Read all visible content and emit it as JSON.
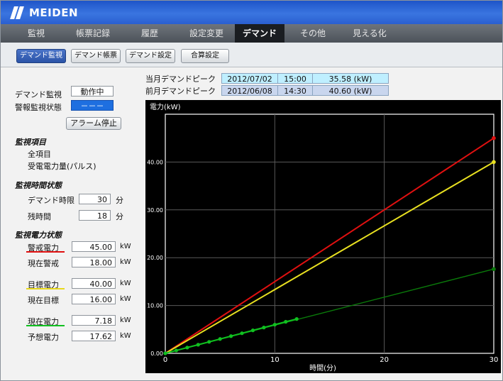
{
  "brand": "MEIDEN",
  "nav_tabs": [
    "監視",
    "帳票記録",
    "履歴",
    "設定変更",
    "デマンド",
    "その他",
    "見える化"
  ],
  "sub_buttons": [
    "デマンド監視",
    "デマンド帳票",
    "デマンド設定",
    "合算設定"
  ],
  "peak": {
    "this_month": {
      "label": "当月デマンドピーク",
      "date": "2012/07/02",
      "time": "15:00",
      "value": "35.58 (kW)"
    },
    "last_month": {
      "label": "前月デマンドピーク",
      "date": "2012/06/08",
      "time": "14:30",
      "value": "40.60 (kW)"
    }
  },
  "status": {
    "demand_monitor_label": "デマンド監視",
    "demand_monitor_value": "動作中",
    "alarm_monitor_label": "警報監視状態",
    "alarm_monitor_value": "－－－",
    "alarm_stop_button": "アラーム停止"
  },
  "items_section": {
    "title": "監視項目",
    "line1": "全項目",
    "line2": "受電電力量(パルス)"
  },
  "time_section": {
    "title": "監視時間状態",
    "period_label": "デマンド時限",
    "period_value": "30",
    "period_unit": "分",
    "remain_label": "残時間",
    "remain_value": "18",
    "remain_unit": "分"
  },
  "power_section": {
    "title": "監視電力状態",
    "rows": [
      {
        "label": "警戒電力",
        "value": "45.00",
        "unit": "kW"
      },
      {
        "label": "現在警戒",
        "value": "18.00",
        "unit": "kW"
      },
      {
        "label": "目標電力",
        "value": "40.00",
        "unit": "kW"
      },
      {
        "label": "現在目標",
        "value": "16.00",
        "unit": "kW"
      },
      {
        "label": "現在電力",
        "value": "7.18",
        "unit": "kW"
      },
      {
        "label": "予想電力",
        "value": "17.62",
        "unit": "kW"
      }
    ]
  },
  "colors": {
    "warning": "#e01010",
    "target": "#e8e020",
    "current": "#10c020",
    "predict": "#0a7a0a"
  },
  "chart_data": {
    "type": "line",
    "ylabel": "電力(kW)",
    "xlabel": "時間(分)",
    "xlim": [
      0,
      30
    ],
    "ylim": [
      0,
      50
    ],
    "x_ticks": [
      "0",
      "10",
      "20",
      "30"
    ],
    "y_ticks": [
      "0.00",
      "10.00",
      "20.00",
      "30.00",
      "40.00"
    ],
    "grid": true,
    "series": [
      {
        "role": "warning",
        "points": [
          [
            0,
            0
          ],
          [
            30,
            45
          ]
        ]
      },
      {
        "role": "target",
        "points": [
          [
            0,
            0
          ],
          [
            30,
            40
          ]
        ]
      },
      {
        "role": "predict",
        "points": [
          [
            0,
            0
          ],
          [
            30,
            17.62
          ]
        ]
      },
      {
        "role": "current",
        "points": [
          [
            0,
            0
          ],
          [
            1,
            0.6
          ],
          [
            2,
            1.2
          ],
          [
            3,
            1.8
          ],
          [
            4,
            2.4
          ],
          [
            5,
            3.0
          ],
          [
            6,
            3.6
          ],
          [
            7,
            4.2
          ],
          [
            8,
            4.8
          ],
          [
            9,
            5.4
          ],
          [
            10,
            6.0
          ],
          [
            11,
            6.6
          ],
          [
            12,
            7.18
          ]
        ]
      }
    ]
  }
}
